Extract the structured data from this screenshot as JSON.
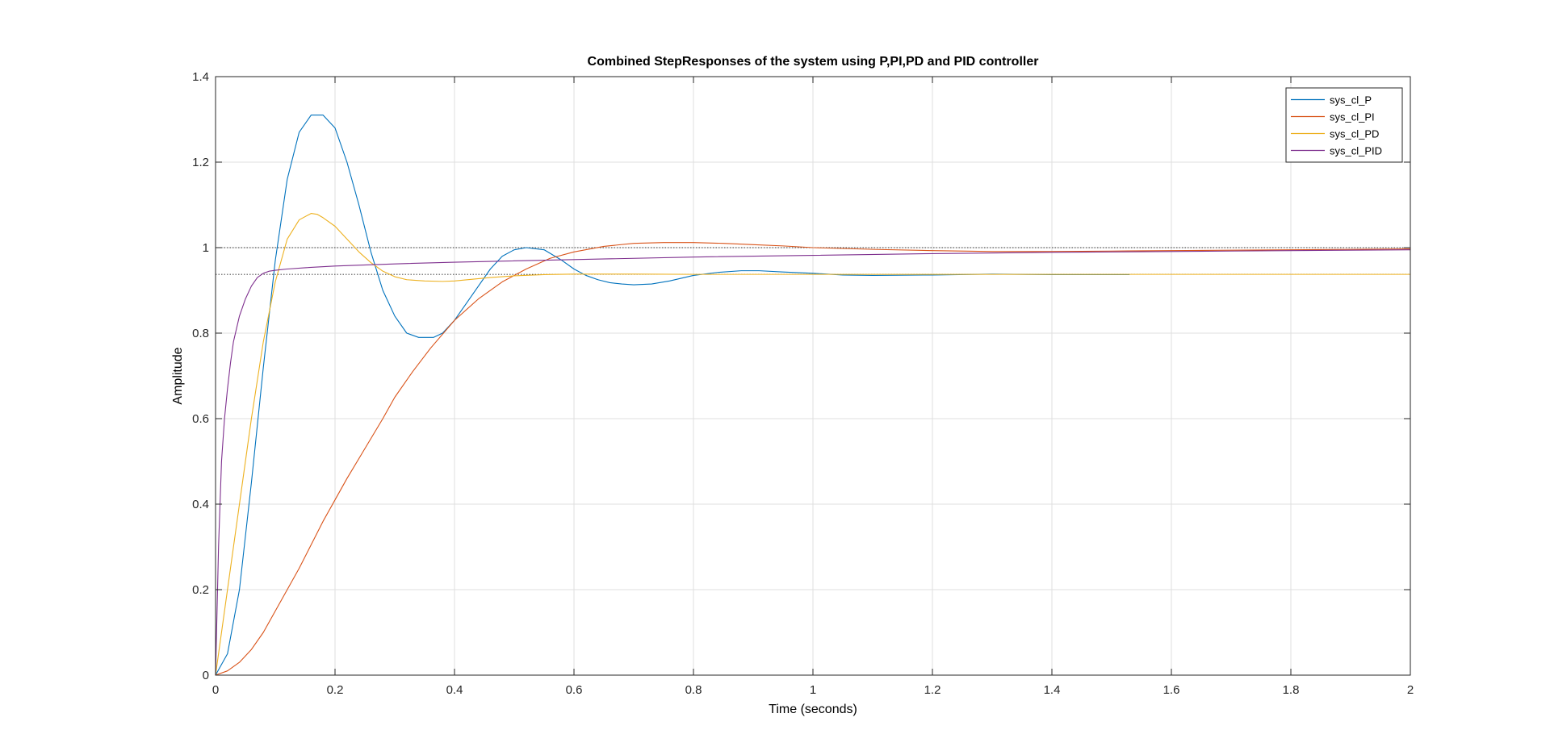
{
  "chart_data": {
    "type": "line",
    "title": "Combined StepResponses of the system using P,PI,PD and PID controller",
    "xlabel": "Time (seconds)",
    "ylabel": "Amplitude",
    "xlim": [
      0,
      2
    ],
    "ylim": [
      0,
      1.4
    ],
    "xticks": [
      0,
      0.2,
      0.4,
      0.6,
      0.8,
      1,
      1.2,
      1.4,
      1.6,
      1.8,
      2
    ],
    "yticks": [
      0,
      0.2,
      0.4,
      0.6,
      0.8,
      1,
      1.2,
      1.4
    ],
    "xtick_labels": [
      "0",
      "0.2",
      "0.4",
      "0.6",
      "0.8",
      "1",
      "1.2",
      "1.4",
      "1.6",
      "1.8",
      "2"
    ],
    "ytick_labels": [
      "0",
      "0.2",
      "0.4",
      "0.6",
      "0.8",
      "1",
      "1.2",
      "1.4"
    ],
    "grid": true,
    "legend_position": "top-right",
    "reference_lines": [
      1.0,
      0.9375
    ],
    "series": [
      {
        "name": "sys_cl_P",
        "color": "#0072BD",
        "x": [
          0,
          0.02,
          0.04,
          0.06,
          0.08,
          0.1,
          0.12,
          0.14,
          0.16,
          0.18,
          0.2,
          0.22,
          0.24,
          0.26,
          0.28,
          0.3,
          0.32,
          0.34,
          0.365,
          0.38,
          0.4,
          0.42,
          0.44,
          0.46,
          0.48,
          0.5,
          0.52,
          0.55,
          0.58,
          0.6,
          0.62,
          0.64,
          0.66,
          0.68,
          0.7,
          0.73,
          0.76,
          0.8,
          0.84,
          0.88,
          0.91,
          0.95,
          1.0,
          1.05,
          1.1,
          1.2,
          1.3,
          1.4,
          1.53
        ],
        "y": [
          0,
          0.05,
          0.2,
          0.45,
          0.72,
          0.97,
          1.16,
          1.27,
          1.31,
          1.31,
          1.28,
          1.2,
          1.1,
          0.99,
          0.9,
          0.84,
          0.8,
          0.79,
          0.79,
          0.8,
          0.83,
          0.87,
          0.91,
          0.95,
          0.98,
          0.995,
          1.0,
          0.995,
          0.97,
          0.95,
          0.935,
          0.925,
          0.918,
          0.915,
          0.913,
          0.915,
          0.922,
          0.935,
          0.942,
          0.946,
          0.946,
          0.943,
          0.94,
          0.936,
          0.935,
          0.936,
          0.938,
          0.937,
          0.937
        ]
      },
      {
        "name": "sys_cl_PI",
        "color": "#D95319",
        "x": [
          0,
          0.02,
          0.04,
          0.06,
          0.08,
          0.1,
          0.12,
          0.14,
          0.16,
          0.18,
          0.2,
          0.22,
          0.25,
          0.28,
          0.3,
          0.33,
          0.36,
          0.4,
          0.44,
          0.48,
          0.52,
          0.56,
          0.6,
          0.65,
          0.7,
          0.75,
          0.8,
          0.85,
          0.9,
          0.95,
          1.0,
          1.1,
          1.2,
          1.3,
          1.4,
          1.5,
          1.6,
          1.7,
          1.8,
          1.9,
          2.0
        ],
        "y": [
          0,
          0.01,
          0.03,
          0.06,
          0.1,
          0.15,
          0.2,
          0.25,
          0.305,
          0.36,
          0.41,
          0.46,
          0.53,
          0.6,
          0.65,
          0.71,
          0.765,
          0.83,
          0.88,
          0.92,
          0.95,
          0.975,
          0.99,
          1.003,
          1.01,
          1.012,
          1.012,
          1.01,
          1.007,
          1.004,
          1.0,
          0.996,
          0.993,
          0.991,
          0.991,
          0.992,
          0.993,
          0.994,
          0.995,
          0.996,
          0.997
        ]
      },
      {
        "name": "sys_cl_PD",
        "color": "#EDB120",
        "x": [
          0,
          0.01,
          0.02,
          0.03,
          0.04,
          0.06,
          0.08,
          0.1,
          0.12,
          0.14,
          0.16,
          0.17,
          0.18,
          0.2,
          0.22,
          0.24,
          0.26,
          0.28,
          0.3,
          0.32,
          0.35,
          0.38,
          0.4,
          0.43,
          0.46,
          0.5,
          0.55,
          0.6,
          0.7,
          0.8,
          1.0,
          1.2,
          1.4,
          1.6,
          1.8,
          2.0
        ],
        "y": [
          0,
          0.1,
          0.2,
          0.3,
          0.4,
          0.6,
          0.78,
          0.92,
          1.02,
          1.065,
          1.08,
          1.078,
          1.07,
          1.05,
          1.02,
          0.99,
          0.965,
          0.945,
          0.932,
          0.925,
          0.922,
          0.921,
          0.922,
          0.926,
          0.93,
          0.934,
          0.937,
          0.938,
          0.938,
          0.9375,
          0.9375,
          0.9375,
          0.9375,
          0.9375,
          0.9375,
          0.9375
        ]
      },
      {
        "name": "sys_cl_PID",
        "color": "#7E2F8E",
        "x": [
          0,
          0.005,
          0.01,
          0.015,
          0.02,
          0.025,
          0.03,
          0.04,
          0.05,
          0.06,
          0.07,
          0.08,
          0.09,
          0.1,
          0.12,
          0.15,
          0.2,
          0.3,
          0.4,
          0.6,
          0.8,
          1.0,
          1.2,
          1.4,
          1.6,
          1.8,
          2.0
        ],
        "y": [
          0,
          0.3,
          0.5,
          0.6,
          0.67,
          0.73,
          0.78,
          0.84,
          0.88,
          0.91,
          0.93,
          0.94,
          0.945,
          0.947,
          0.95,
          0.953,
          0.957,
          0.962,
          0.966,
          0.972,
          0.978,
          0.982,
          0.986,
          0.989,
          0.991,
          0.993,
          0.995
        ]
      }
    ]
  }
}
